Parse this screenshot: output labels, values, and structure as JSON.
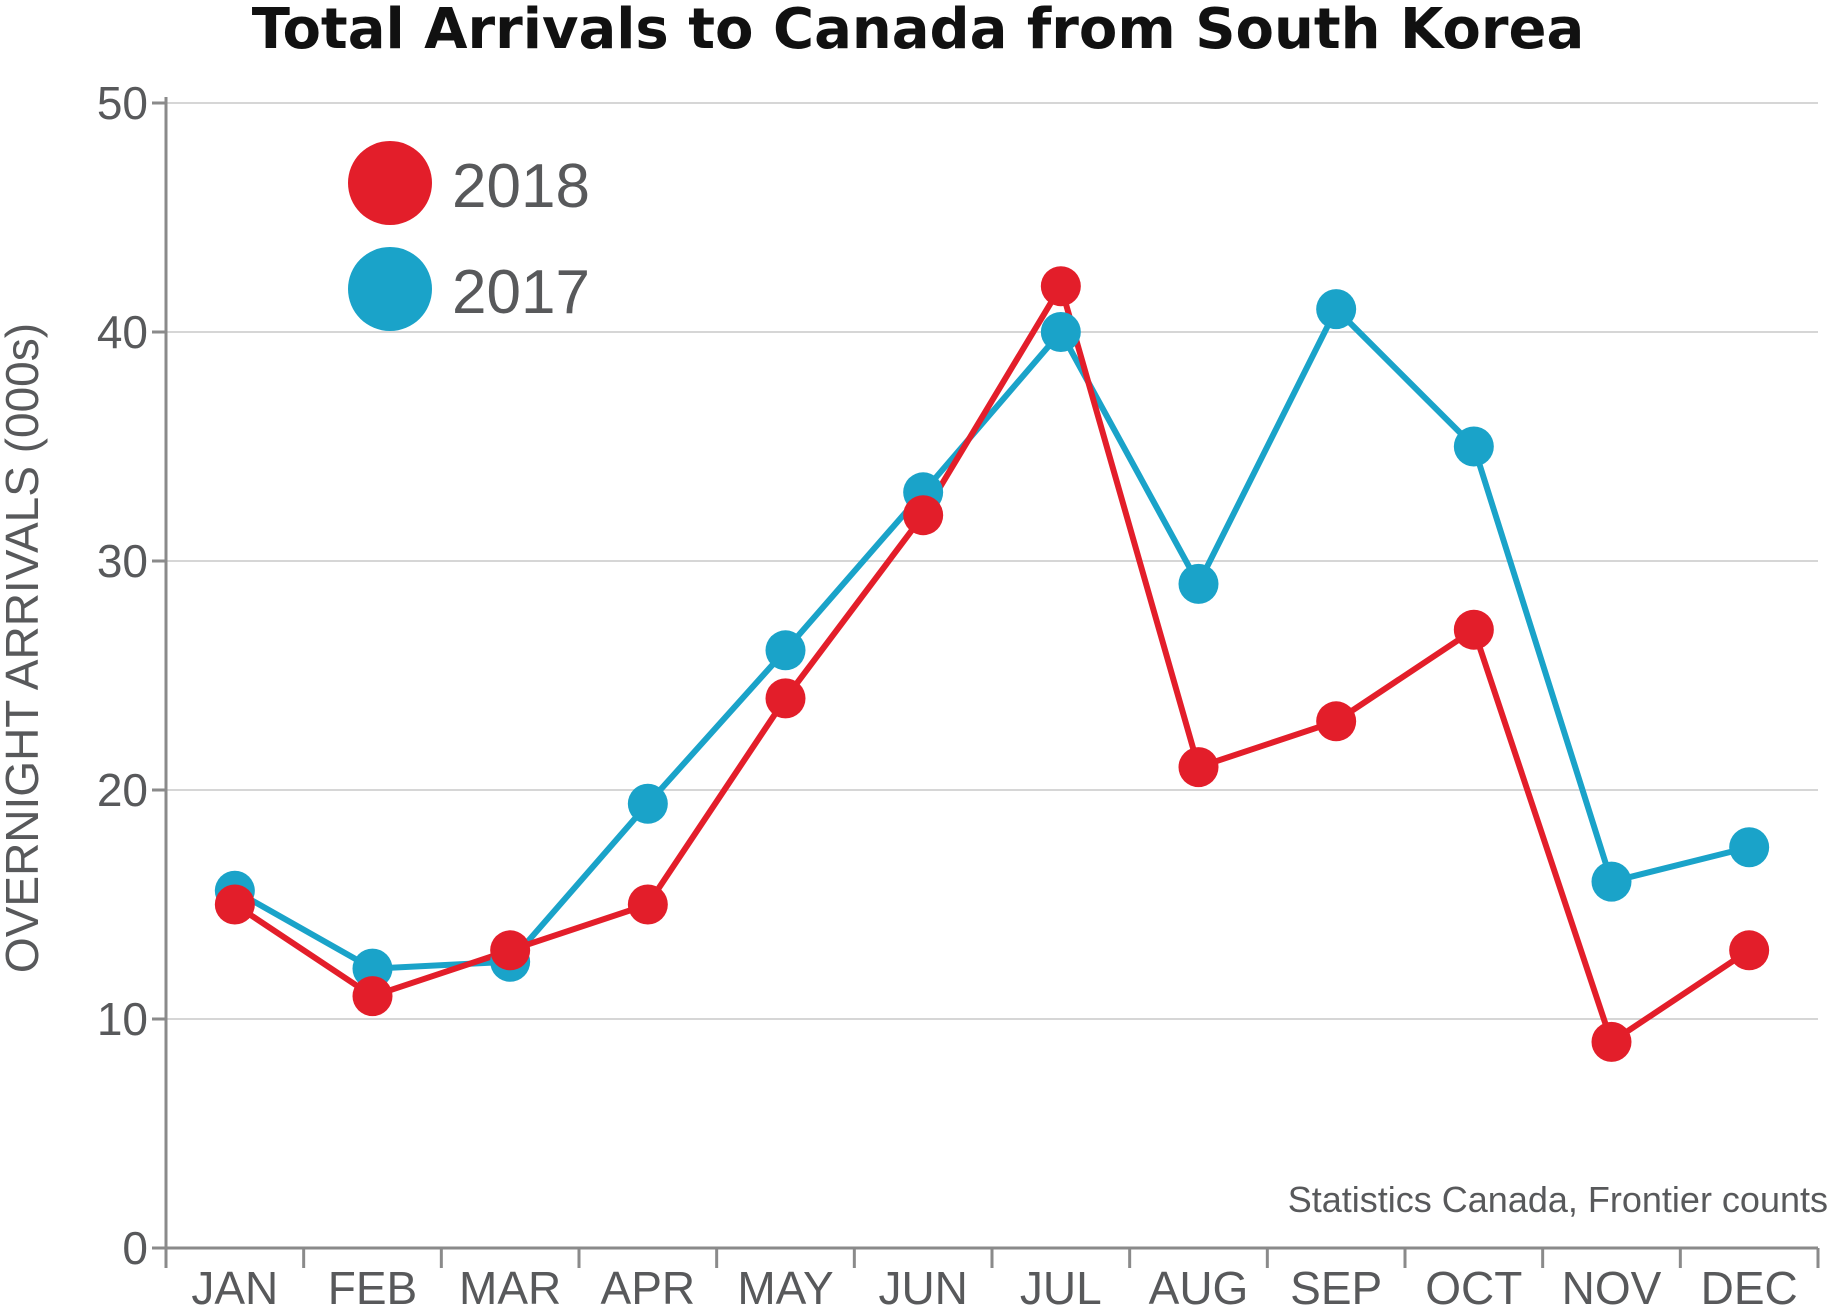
{
  "chart_data": {
    "type": "line",
    "title": "Total Arrivals to Canada from South Korea",
    "xlabel": "",
    "ylabel": "OVERNIGHT ARRIVALS (000s)",
    "categories": [
      "JAN",
      "FEB",
      "MAR",
      "APR",
      "MAY",
      "JUN",
      "JUL",
      "AUG",
      "SEP",
      "OCT",
      "NOV",
      "DEC"
    ],
    "ylim": [
      0,
      50
    ],
    "yticks": [
      0,
      10,
      20,
      30,
      40,
      50
    ],
    "grid": true,
    "legend": "top-left",
    "series": [
      {
        "name": "2017",
        "color": "#1aa3c9",
        "values": [
          15.6,
          12.2,
          12.5,
          19.4,
          26.1,
          33,
          40,
          29,
          41,
          35,
          16,
          17.5
        ]
      },
      {
        "name": "2018",
        "color": "#e31e2a",
        "values": [
          15,
          11,
          13,
          15,
          24,
          32,
          42,
          21,
          23,
          27,
          9,
          13
        ]
      }
    ],
    "legend_entries": [
      "2018",
      "2017"
    ],
    "source": "Statistics Canada, Frontier counts"
  }
}
